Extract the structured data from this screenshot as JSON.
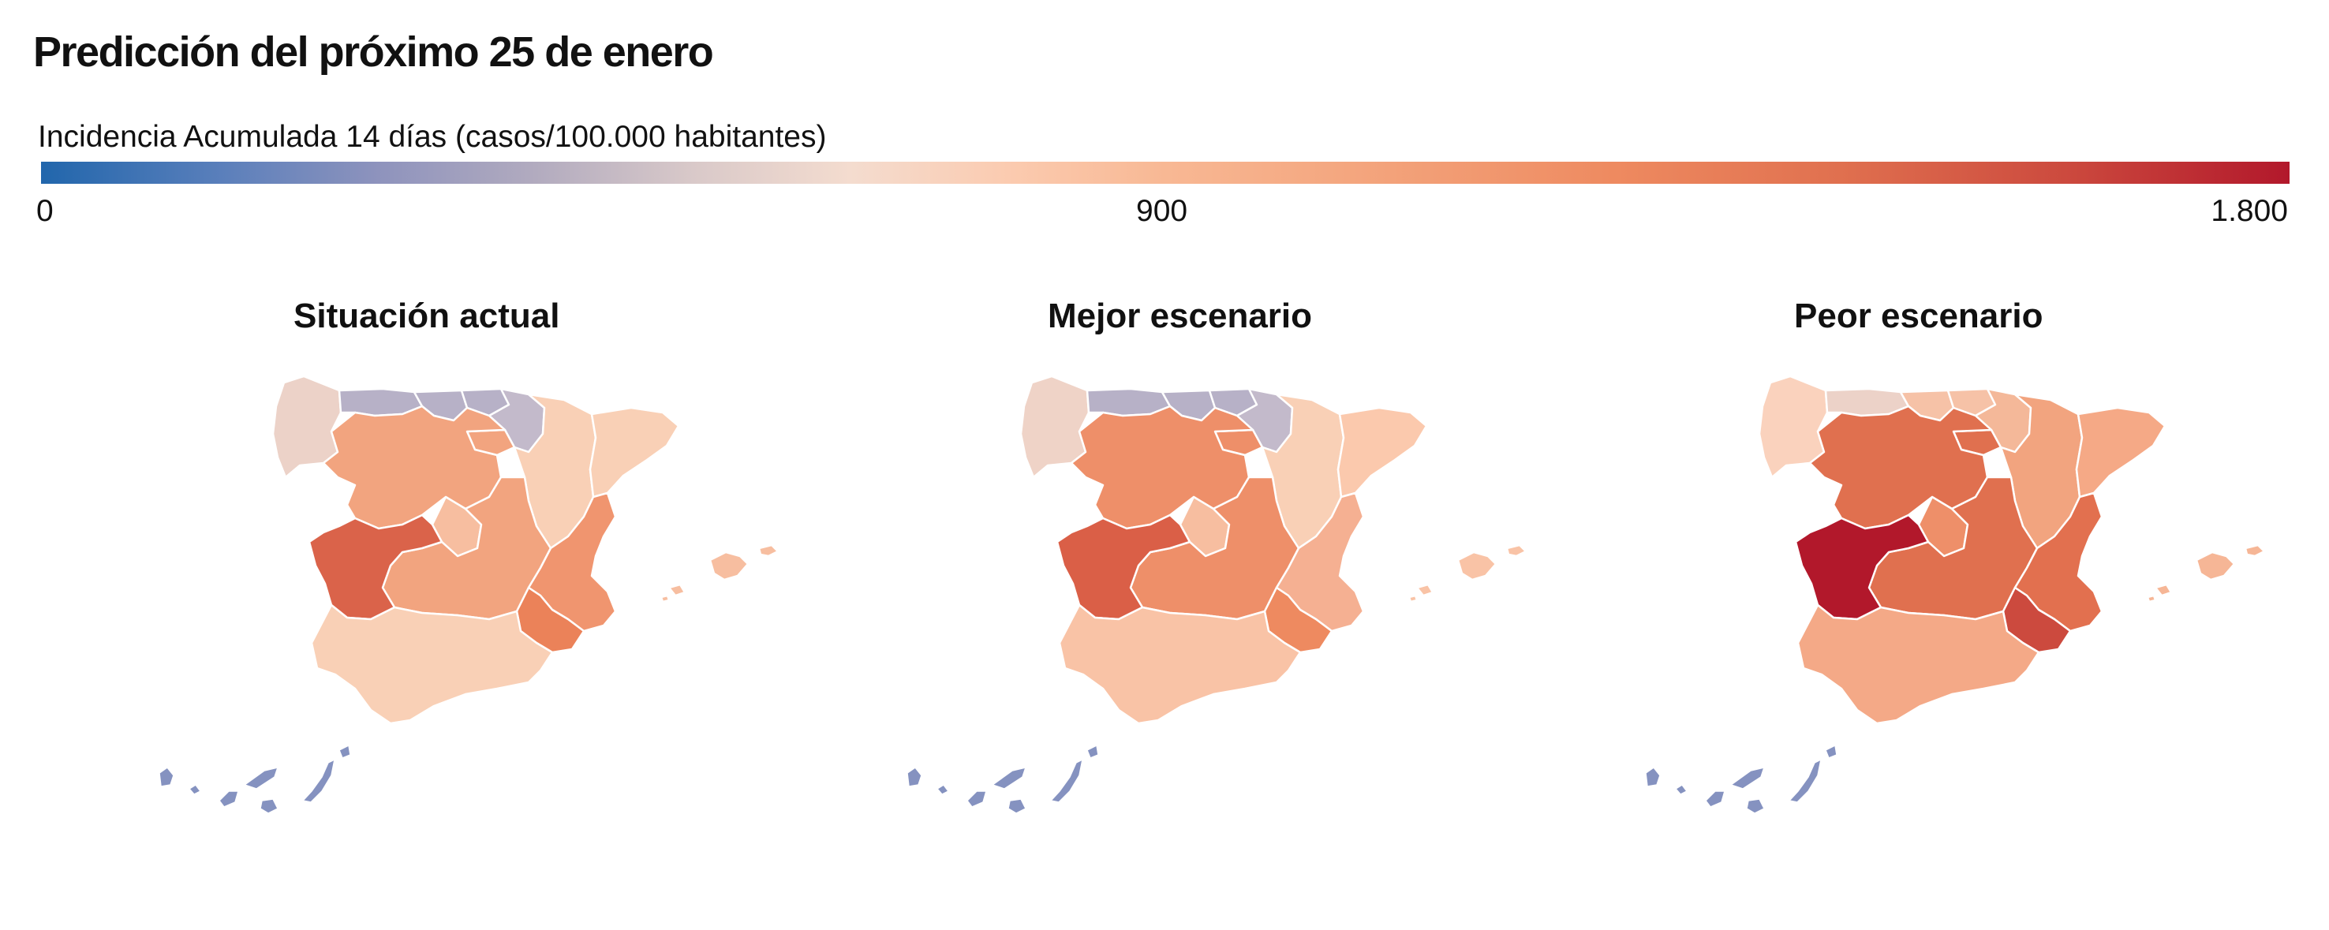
{
  "title": "Predicción del próximo 25 de enero",
  "legend": {
    "label": "Incidencia Acumulada 14 días (casos/100.000 habitantes)",
    "min_label": "0",
    "mid_label": "900",
    "max_label": "1.800",
    "min_value": 0,
    "mid_value": 900,
    "max_value": 1800,
    "color_low": "#2166ac",
    "color_mid": "#f4dccf",
    "color_high": "#b2182b"
  },
  "maps": [
    {
      "title": "Situación actual",
      "colors": {
        "galicia": "#ecd2c8",
        "asturias": "#b7b1c7",
        "cantabria": "#b7b1c7",
        "pais_vasco": "#b7b1c7",
        "navarra": "#c3bacb",
        "castilla_leon": "#f2a47f",
        "la_rioja": "#f2a47f",
        "aragon": "#f9d0b6",
        "cataluna": "#f9d0b6",
        "madrid": "#f7bea0",
        "castilla_la_mancha": "#f2a47f",
        "extremadura": "#da634a",
        "valencia": "#f0956f",
        "murcia": "#eb8259",
        "andalucia": "#f9d0b6",
        "baleares": "#f7bea0",
        "canarias": "#8592c0"
      }
    },
    {
      "title": "Mejor escenario",
      "colors": {
        "galicia": "#efd3c7",
        "asturias": "#b7b1c7",
        "cantabria": "#b7b1c7",
        "pais_vasco": "#b7b1c7",
        "navarra": "#c3bacb",
        "castilla_leon": "#ee8f69",
        "la_rioja": "#ee8f69",
        "aragon": "#f9d0b6",
        "cataluna": "#fbc9ad",
        "madrid": "#f7bea0",
        "castilla_la_mancha": "#ee8f69",
        "extremadura": "#da5f47",
        "valencia": "#f5b092",
        "murcia": "#ee8a60",
        "andalucia": "#f9c3a6",
        "baleares": "#f9c3a6",
        "canarias": "#8592c0"
      }
    },
    {
      "title": "Peor escenario",
      "colors": {
        "galicia": "#fad2bd",
        "asturias": "#ecd2c8",
        "cantabria": "#f6c2a7",
        "pais_vasco": "#f6c2a7",
        "navarra": "#f4b899",
        "castilla_leon": "#e0704f",
        "la_rioja": "#e0704f",
        "aragon": "#f2a47f",
        "cataluna": "#f5a986",
        "madrid": "#ee8f69",
        "castilla_la_mancha": "#e0704f",
        "extremadura": "#b2182b",
        "valencia": "#e2704f",
        "murcia": "#cc4a3e",
        "andalucia": "#f4a987",
        "baleares": "#f6b696",
        "canarias": "#8592c0"
      }
    }
  ]
}
